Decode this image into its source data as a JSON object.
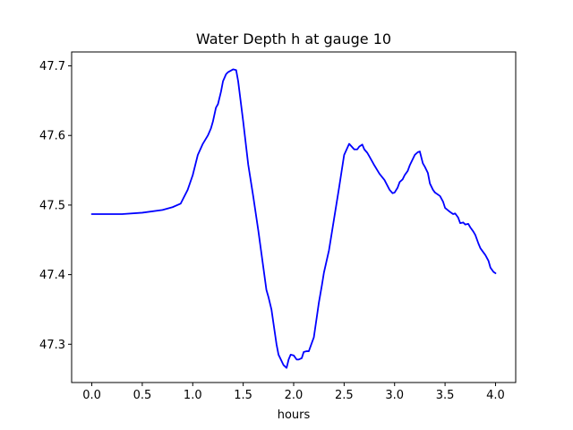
{
  "chart_data": {
    "type": "line",
    "title": "Water Depth h at gauge 10",
    "xlabel": "hours",
    "ylabel": "",
    "xlim": [
      -0.2,
      4.2
    ],
    "ylim": [
      47.245,
      47.72
    ],
    "grid": false,
    "xticks": [
      0.0,
      0.5,
      1.0,
      1.5,
      2.0,
      2.5,
      3.0,
      3.5,
      4.0
    ],
    "xtick_labels": [
      "0.0",
      "0.5",
      "1.0",
      "1.5",
      "2.0",
      "2.5",
      "3.0",
      "3.5",
      "4.0"
    ],
    "yticks": [
      47.3,
      47.4,
      47.5,
      47.6,
      47.7
    ],
    "ytick_labels": [
      "47.3",
      "47.4",
      "47.5",
      "47.6",
      "47.7"
    ],
    "series": [
      {
        "color": "#0000ff",
        "x": [
          0.0,
          0.3,
          0.5,
          0.7,
          0.8,
          0.88,
          0.95,
          1.0,
          1.05,
          1.1,
          1.15,
          1.18,
          1.2,
          1.23,
          1.25,
          1.28,
          1.3,
          1.33,
          1.35,
          1.4,
          1.43,
          1.45,
          1.5,
          1.55,
          1.6,
          1.65,
          1.7,
          1.73,
          1.75,
          1.78,
          1.8,
          1.83,
          1.85,
          1.9,
          1.93,
          1.95,
          1.97,
          2.0,
          2.03,
          2.05,
          2.08,
          2.1,
          2.13,
          2.15,
          2.2,
          2.23,
          2.25,
          2.28,
          2.3,
          2.35,
          2.4,
          2.45,
          2.5,
          2.55,
          2.6,
          2.63,
          2.65,
          2.68,
          2.7,
          2.73,
          2.75,
          2.8,
          2.85,
          2.9,
          2.95,
          2.98,
          3.0,
          3.03,
          3.05,
          3.08,
          3.1,
          3.13,
          3.15,
          3.2,
          3.23,
          3.25,
          3.28,
          3.3,
          3.33,
          3.35,
          3.38,
          3.4,
          3.45,
          3.48,
          3.5,
          3.55,
          3.58,
          3.6,
          3.63,
          3.65,
          3.68,
          3.7,
          3.73,
          3.75,
          3.78,
          3.8,
          3.83,
          3.85,
          3.9,
          3.93,
          3.95,
          3.98,
          4.0
        ],
        "values": [
          47.487,
          47.487,
          47.489,
          47.493,
          47.497,
          47.502,
          47.522,
          47.543,
          47.572,
          47.588,
          47.6,
          47.61,
          47.62,
          47.64,
          47.645,
          47.663,
          47.678,
          47.688,
          47.691,
          47.695,
          47.694,
          47.678,
          47.62,
          47.558,
          47.512,
          47.463,
          47.41,
          47.378,
          47.368,
          47.35,
          47.33,
          47.3,
          47.285,
          47.27,
          47.266,
          47.278,
          47.285,
          47.284,
          47.278,
          47.278,
          47.28,
          47.289,
          47.29,
          47.29,
          47.31,
          47.34,
          47.36,
          47.385,
          47.403,
          47.435,
          47.48,
          47.525,
          47.572,
          47.588,
          47.58,
          47.58,
          47.584,
          47.587,
          47.58,
          47.575,
          47.57,
          47.557,
          47.545,
          47.536,
          47.522,
          47.517,
          47.518,
          47.525,
          47.533,
          47.537,
          47.543,
          47.549,
          47.557,
          47.572,
          47.576,
          47.577,
          47.56,
          47.555,
          47.546,
          47.531,
          47.522,
          47.518,
          47.513,
          47.505,
          47.496,
          47.49,
          47.487,
          47.488,
          47.482,
          47.474,
          47.475,
          47.472,
          47.473,
          47.468,
          47.462,
          47.457,
          47.445,
          47.438,
          47.428,
          47.42,
          47.41,
          47.404,
          47.402
        ]
      }
    ]
  }
}
